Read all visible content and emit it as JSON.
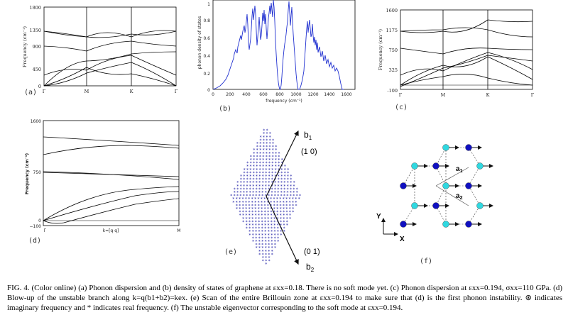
{
  "panels": {
    "a": {
      "label": "(a)",
      "y_label": "Frequency (cm⁻¹)",
      "y_ticks": [
        "1800",
        "1350",
        "900",
        "450",
        "0"
      ],
      "x_ticks": [
        "Γ",
        "M",
        "K",
        "Γ"
      ]
    },
    "b": {
      "label": "(b)",
      "y_label": "phonon density of states",
      "y_ticks": [
        "1",
        "0.8",
        "0.6",
        "0.4",
        "0.2",
        "0"
      ],
      "x_ticks": [
        "0",
        "200",
        "400",
        "600",
        "800",
        "1000",
        "1200",
        "1400",
        "1600"
      ],
      "x_label": "frequency (cm⁻¹)"
    },
    "c": {
      "label": "(c)",
      "y_label": "Frequency (cm⁻¹)",
      "y_ticks": [
        "1600",
        "1175",
        "750",
        "325",
        "-100"
      ],
      "x_ticks": [
        "Γ",
        "M",
        "K",
        "Γ"
      ]
    },
    "d": {
      "label": "(d)",
      "y_label": "Frequency (cm⁻¹)",
      "y_ticks": [
        "1600",
        "750",
        "0",
        "−100"
      ],
      "x_ticks": [
        "Γ",
        "k=[q q]",
        "M"
      ]
    },
    "e": {
      "label": "(e)",
      "b1": "b",
      "b1_sub": "1",
      "b1_dir": "(1 0)",
      "b2": "b",
      "b2_sub": "2",
      "b2_dir": "(0 1)"
    },
    "f": {
      "label": "(f)",
      "a1": "a",
      "a1_sub": "1",
      "a2": "a",
      "a2_sub": "2",
      "axis_x": "X",
      "axis_y": "Y",
      "atom_color_a": "#1010c0",
      "atom_color_b": "#30d8e0"
    }
  },
  "caption": {
    "text": "FIG. 4. (Color online) (a) Phonon dispersion and (b) density of states of graphene at εxx=0.18. There is no soft mode yet. (c) Phonon dispersion at εxx=0.194, σxx=110 GPa. (d) Blow-up of the unstable branch along k=q(b1+b2)=kex. (e) Scan of the entire Brillouin zone at εxx=0.194 to make sure that (d) is the first phonon instability. ⊛ indicates imaginary frequency and * indicates real frequency. (f) The unstable eigenvector corresponding to the soft mode at εxx=0.194."
  }
}
